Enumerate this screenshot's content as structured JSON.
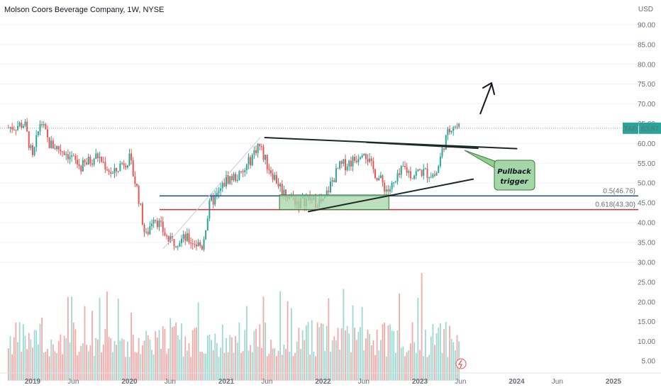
{
  "title": "Molson Coors Beverage Company, 1W, NYSE",
  "currency": "USD",
  "ticker_badge": "TAP",
  "price_badge": "63.87",
  "fib_levels": [
    {
      "label": "0.5(46.76)",
      "value": 46.76,
      "color": "#1e4f9c"
    },
    {
      "label": "0.618(43.30)",
      "value": 43.3,
      "color": "#d32f2f"
    }
  ],
  "callout": {
    "line1": "Pullback",
    "line2": "trigger"
  },
  "colors": {
    "up": "#26a69a",
    "down": "#ef5350",
    "vol_up": "#9fd8d1",
    "vol_down": "#f5a9a7"
  },
  "chart_data": {
    "type": "candlestick",
    "ylim": [
      30,
      95
    ],
    "y_ticks": [
      "90.00",
      "85.00",
      "80.00",
      "75.00",
      "70.00",
      "65.00",
      "60.00",
      "55.00",
      "50.00",
      "45.00",
      "40.00",
      "35.00",
      "30.00"
    ],
    "volume_ticks": [
      "25.00",
      "20.00",
      "15.00",
      "10.00",
      "5.00"
    ],
    "x_ticks": [
      "2019",
      "Jun",
      "2020",
      "Jun",
      "2021",
      "Jun",
      "2022",
      "Jun",
      "2023",
      "Jun",
      "2024",
      "Jun",
      "2025"
    ],
    "last_price": 63.87,
    "price_path": [
      [
        "2018-10",
        64
      ],
      [
        "2018-12",
        65
      ],
      [
        "2019-01",
        56
      ],
      [
        "2019-02",
        66
      ],
      [
        "2019-03",
        60
      ],
      [
        "2019-05",
        58
      ],
      [
        "2019-07",
        54
      ],
      [
        "2019-09",
        57
      ],
      [
        "2019-11",
        52
      ],
      [
        "2019-12",
        55
      ],
      [
        "2020-01",
        56
      ],
      [
        "2020-02",
        48
      ],
      [
        "2020-03",
        36
      ],
      [
        "2020-04",
        42
      ],
      [
        "2020-06",
        35
      ],
      [
        "2020-08",
        36
      ],
      [
        "2020-10",
        34
      ],
      [
        "2020-11",
        45
      ],
      [
        "2020-12",
        47
      ],
      [
        "2021-01",
        51
      ],
      [
        "2021-03",
        52
      ],
      [
        "2021-05",
        60
      ],
      [
        "2021-06",
        55
      ],
      [
        "2021-08",
        48
      ],
      [
        "2021-10",
        45
      ],
      [
        "2021-11",
        46
      ],
      [
        "2022-01",
        45
      ],
      [
        "2022-02",
        50
      ],
      [
        "2022-03",
        54
      ],
      [
        "2022-05",
        56
      ],
      [
        "2022-06",
        59
      ],
      [
        "2022-07",
        54
      ],
      [
        "2022-09",
        48
      ],
      [
        "2022-10",
        50
      ],
      [
        "2022-11",
        54
      ],
      [
        "2022-12",
        52
      ],
      [
        "2023-01",
        53
      ],
      [
        "2023-03",
        52
      ],
      [
        "2023-04",
        60
      ],
      [
        "2023-05",
        65
      ],
      [
        "2023-06",
        63.87
      ]
    ]
  }
}
